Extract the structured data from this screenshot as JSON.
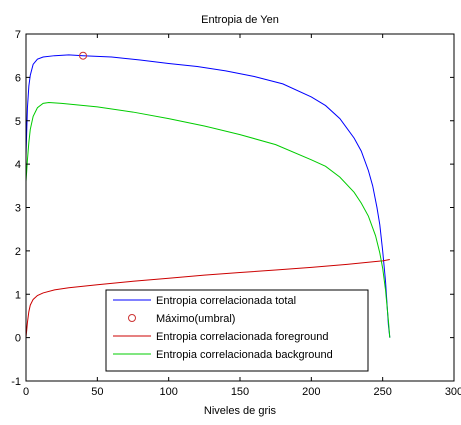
{
  "chart_data": {
    "type": "line",
    "title": "Entropia de Yen",
    "xlabel": "Niveles de gris",
    "ylabel": "",
    "xlim": [
      0,
      300
    ],
    "ylim": [
      -1,
      7
    ],
    "xticks": [
      0,
      50,
      100,
      150,
      200,
      250,
      300
    ],
    "yticks": [
      -1,
      0,
      1,
      2,
      3,
      4,
      5,
      6,
      7
    ],
    "grid": false,
    "legend_position": "bottom-center",
    "series": [
      {
        "name": "Entropia correlacionada total",
        "color": "#0000ff",
        "x": [
          0,
          1,
          2,
          3,
          5,
          8,
          12,
          20,
          30,
          40,
          60,
          80,
          100,
          120,
          140,
          160,
          180,
          200,
          210,
          220,
          230,
          235,
          240,
          243,
          246,
          248,
          250,
          252,
          253,
          254,
          255
        ],
        "y": [
          4.2,
          5.3,
          5.8,
          6.05,
          6.3,
          6.42,
          6.47,
          6.5,
          6.52,
          6.5,
          6.47,
          6.4,
          6.32,
          6.25,
          6.15,
          6.02,
          5.85,
          5.55,
          5.35,
          5.05,
          4.6,
          4.3,
          3.85,
          3.5,
          3.0,
          2.6,
          2.0,
          1.3,
          0.8,
          0.3,
          0.0
        ]
      },
      {
        "name": "Máximo(umbral)",
        "color": "#cc3333",
        "marker": "circle",
        "x": [
          40
        ],
        "y": [
          6.5
        ]
      },
      {
        "name": "Entropia correlacionada foreground",
        "color": "#cc0000",
        "x": [
          0,
          1,
          2,
          3,
          5,
          8,
          12,
          20,
          30,
          50,
          75,
          100,
          125,
          150,
          175,
          200,
          225,
          250,
          255
        ],
        "y": [
          0.0,
          0.35,
          0.6,
          0.75,
          0.88,
          0.97,
          1.03,
          1.1,
          1.15,
          1.22,
          1.3,
          1.37,
          1.44,
          1.5,
          1.56,
          1.62,
          1.69,
          1.77,
          1.8
        ]
      },
      {
        "name": "Entropia correlacionada background",
        "color": "#00cc00",
        "x": [
          0,
          1,
          2,
          3,
          5,
          8,
          12,
          16,
          25,
          50,
          75,
          100,
          125,
          150,
          175,
          200,
          210,
          220,
          230,
          235,
          240,
          245,
          248,
          250,
          252,
          254,
          255
        ],
        "y": [
          3.6,
          4.1,
          4.5,
          4.8,
          5.1,
          5.3,
          5.4,
          5.42,
          5.4,
          5.32,
          5.2,
          5.05,
          4.88,
          4.68,
          4.45,
          4.1,
          3.95,
          3.7,
          3.35,
          3.1,
          2.8,
          2.35,
          1.95,
          1.6,
          1.1,
          0.4,
          0.0
        ]
      }
    ]
  }
}
